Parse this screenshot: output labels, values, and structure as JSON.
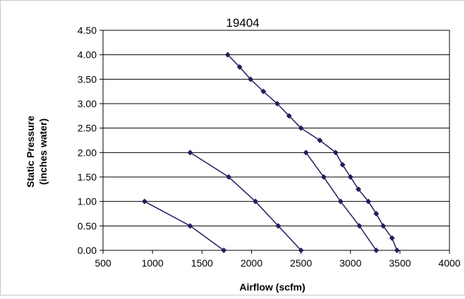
{
  "chart_data": {
    "type": "line",
    "title": "19404",
    "xlabel": "Airflow (scfm)",
    "ylabel_line1": "Static Pressure",
    "ylabel_line2": "(inches water)",
    "xlim": [
      500,
      4000
    ],
    "ylim": [
      0,
      4.5
    ],
    "x_ticks": [
      500,
      1000,
      1500,
      2000,
      2500,
      3000,
      3500,
      4000
    ],
    "y_ticks": [
      0,
      0.5,
      1,
      1.5,
      2,
      2.5,
      3,
      3.5,
      4,
      4.5
    ],
    "x_tick_labels": [
      "500",
      "1000",
      "1500",
      "2000",
      "2500",
      "3000",
      "3500",
      "4000"
    ],
    "y_tick_labels": [
      "0.00",
      "0.50",
      "1.00",
      "1.50",
      "2.00",
      "2.50",
      "3.00",
      "3.50",
      "4.00",
      "4.50"
    ],
    "grid": "horizontal",
    "legend": "none",
    "series_color": "#1f1f5c",
    "series": [
      {
        "x": [
          920,
          1380,
          1720
        ],
        "y": [
          1.0,
          0.5,
          0.0
        ]
      },
      {
        "x": [
          1380,
          1770,
          2040,
          2270,
          2500
        ],
        "y": [
          2.0,
          1.5,
          1.0,
          0.5,
          0.0
        ]
      },
      {
        "x": [
          2550,
          2730,
          2900,
          3090,
          3260
        ],
        "y": [
          2.0,
          1.5,
          1.0,
          0.5,
          0.0
        ]
      },
      {
        "x": [
          1760,
          1880,
          1990,
          2120,
          2260,
          2380,
          2500,
          2690,
          2850,
          2920,
          3000,
          3080,
          3180,
          3260,
          3330,
          3420,
          3470
        ],
        "y": [
          4.0,
          3.75,
          3.5,
          3.25,
          3.0,
          2.75,
          2.5,
          2.25,
          2.0,
          1.75,
          1.5,
          1.25,
          1.0,
          0.75,
          0.5,
          0.25,
          0.0
        ]
      }
    ]
  }
}
